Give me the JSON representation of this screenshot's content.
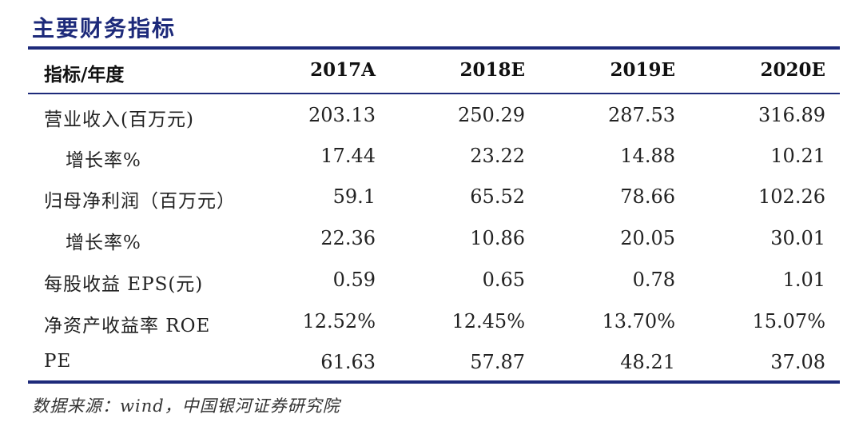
{
  "title": "主要财务指标",
  "header": {
    "label": "指标/年度",
    "years": [
      "2017A",
      "2018E",
      "2019E",
      "2020E"
    ]
  },
  "rows": [
    {
      "label": "营业收入(百万元)",
      "values": [
        "203.13",
        "250.29",
        "287.53",
        "316.89"
      ]
    },
    {
      "label": "增长率%",
      "values": [
        "17.44",
        "23.22",
        "14.88",
        "10.21"
      ]
    },
    {
      "label": "归母净利润（百万元）",
      "values": [
        "59.1",
        "65.52",
        "78.66",
        "102.26"
      ]
    },
    {
      "label": "增长率%",
      "values": [
        "22.36",
        "10.86",
        "20.05",
        "30.01"
      ]
    },
    {
      "label": "每股收益 EPS(元)",
      "values": [
        "0.59",
        "0.65",
        "0.78",
        "1.01"
      ]
    },
    {
      "label": "净资产收益率 ROE",
      "values": [
        "12.52%",
        "12.45%",
        "13.70%",
        "15.07%"
      ]
    },
    {
      "label": "PE",
      "values": [
        "61.63",
        "57.87",
        "48.21",
        "37.08"
      ]
    }
  ],
  "source": "数据来源：wind，中国银河证券研究院",
  "colors": {
    "accent": "#1d2a7a"
  }
}
